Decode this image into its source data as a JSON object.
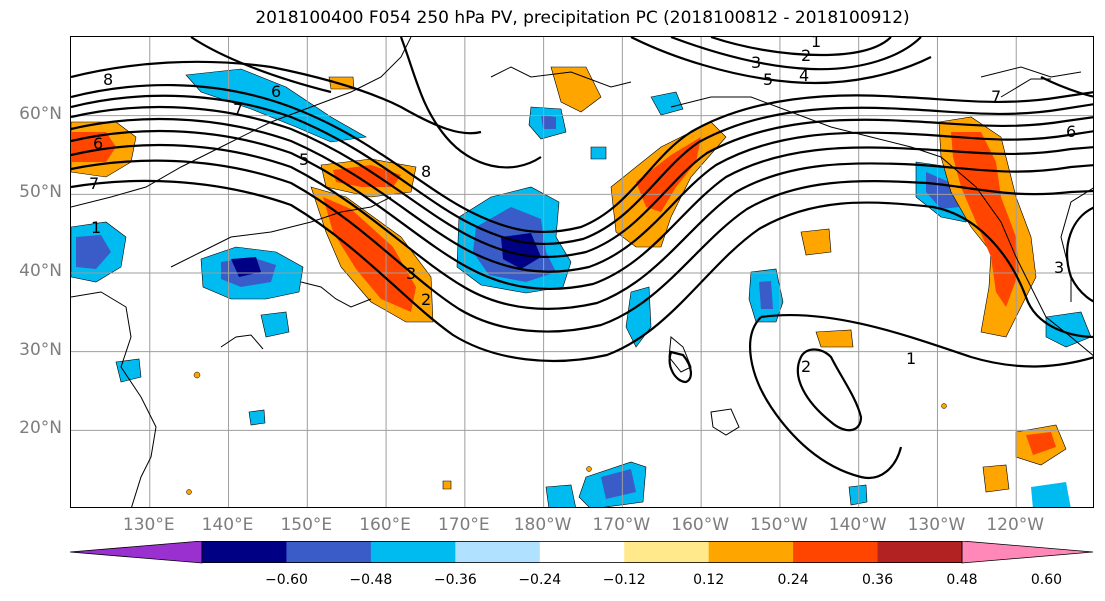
{
  "title": "2018100400 F054 250 hPa PV, precipitation PC (2018100812 - 2018100912)",
  "lat_labels": [
    {
      "text": "60°N",
      "lat": 60
    },
    {
      "text": "50°N",
      "lat": 50
    },
    {
      "text": "40°N",
      "lat": 40
    },
    {
      "text": "30°N",
      "lat": 30
    },
    {
      "text": "20°N",
      "lat": 20
    }
  ],
  "lon_labels": [
    {
      "text": "130°E",
      "lon": 130
    },
    {
      "text": "140°E",
      "lon": 140
    },
    {
      "text": "150°E",
      "lon": 150
    },
    {
      "text": "160°E",
      "lon": 160
    },
    {
      "text": "170°E",
      "lon": 170
    },
    {
      "text": "180°W",
      "lon": 180
    },
    {
      "text": "170°W",
      "lon": 190
    },
    {
      "text": "160°W",
      "lon": 200
    },
    {
      "text": "150°W",
      "lon": 210
    },
    {
      "text": "140°W",
      "lon": 220
    },
    {
      "text": "130°W",
      "lon": 230
    },
    {
      "text": "120°W",
      "lon": 240
    }
  ],
  "colorbar": {
    "colors": [
      "#9b30d0",
      "#000085",
      "#3a5cc8",
      "#00bbf0",
      "#b0e2ff",
      "#ffffff",
      "#ffe98a",
      "#ffa500",
      "#ff4500",
      "#b22222",
      "#ff88b8"
    ],
    "labels": [
      "−0.60",
      "−0.48",
      "−0.36",
      "−0.24",
      "−0.12",
      "0.12",
      "0.24",
      "0.36",
      "0.48",
      "0.60"
    ]
  },
  "contour_labels": [
    "1",
    "2",
    "3",
    "4",
    "5",
    "6",
    "7",
    "8",
    "1",
    "2",
    "3",
    "5",
    "6",
    "7",
    "8",
    "1",
    "2",
    "3",
    "6",
    "7"
  ],
  "colors": {
    "grid": "#9e9e9e",
    "contour": "#000000",
    "coast": "#000000"
  }
}
